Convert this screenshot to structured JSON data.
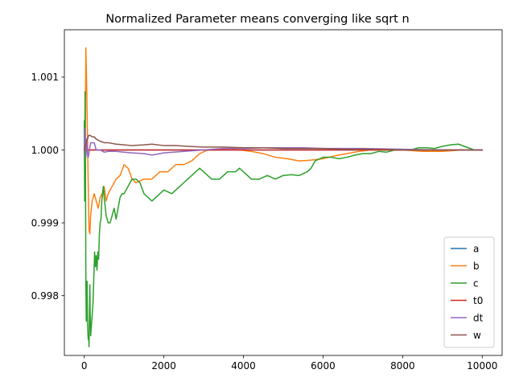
{
  "chart_data": {
    "type": "line",
    "title": "Normalized Parameter means converging like sqrt n",
    "xlabel": "",
    "ylabel": "",
    "xlim": [
      -500,
      10500
    ],
    "ylim": [
      0.99718,
      1.00165
    ],
    "x_ticks": [
      0,
      2000,
      4000,
      6000,
      8000,
      10000
    ],
    "x_tick_labels": [
      "0",
      "2000",
      "4000",
      "6000",
      "8000",
      "10000"
    ],
    "y_ticks": [
      0.998,
      0.999,
      1.0,
      1.001
    ],
    "y_tick_labels": [
      "0.998",
      "0.999",
      "1.000",
      "1.001"
    ],
    "grid": false,
    "legend_position": "lower-right",
    "series": [
      {
        "name": "a",
        "color": "#1f77b4",
        "x": [
          0,
          50,
          200,
          1000,
          3000,
          6000,
          10000
        ],
        "y": [
          1.0,
          1.0,
          1.0,
          1.0,
          1.0,
          1.0,
          1.0
        ]
      },
      {
        "name": "b",
        "color": "#ff7f0e",
        "x": [
          0,
          20,
          40,
          60,
          80,
          100,
          120,
          140,
          160,
          180,
          200,
          250,
          300,
          350,
          400,
          450,
          500,
          550,
          600,
          700,
          800,
          900,
          1000,
          1100,
          1200,
          1300,
          1500,
          1700,
          1900,
          2100,
          2300,
          2500,
          2700,
          2900,
          3100,
          3300,
          3600,
          3900,
          4200,
          4500,
          4800,
          5100,
          5400,
          5700,
          6000,
          6300,
          6600,
          6900,
          7200,
          7600,
          8000,
          8500,
          9000,
          9500,
          10000
        ],
        "y": [
          1.0,
          0.99985,
          1.0014,
          1.0009,
          1.0002,
          0.9995,
          0.9989,
          0.99885,
          0.9991,
          0.9992,
          0.9993,
          0.9994,
          0.9993,
          0.9992,
          0.99935,
          0.9994,
          0.9995,
          0.9993,
          0.9994,
          0.9995,
          0.9996,
          0.99965,
          0.9998,
          0.99975,
          0.9996,
          0.99955,
          0.9996,
          0.9996,
          0.9997,
          0.9997,
          0.9998,
          0.9998,
          0.99985,
          0.99995,
          1.0,
          1.0,
          1.00002,
          1.0,
          0.99998,
          0.99995,
          0.9999,
          0.99988,
          0.99985,
          0.99986,
          0.99988,
          0.99992,
          0.99995,
          0.99998,
          1.0,
          1.0,
          1.0,
          0.99998,
          0.99998,
          1.0,
          1.0
        ]
      },
      {
        "name": "c",
        "color": "#2ca02c",
        "x": [
          0,
          10,
          20,
          30,
          40,
          50,
          60,
          70,
          80,
          90,
          100,
          110,
          120,
          130,
          140,
          150,
          160,
          180,
          200,
          220,
          240,
          260,
          280,
          300,
          320,
          340,
          360,
          380,
          400,
          420,
          440,
          460,
          480,
          500,
          550,
          600,
          650,
          700,
          750,
          800,
          850,
          900,
          950,
          1000,
          1100,
          1200,
          1300,
          1400,
          1500,
          1600,
          1700,
          1800,
          1900,
          2000,
          2200,
          2400,
          2600,
          2800,
          2900,
          3000,
          3200,
          3400,
          3600,
          3800,
          3900,
          4000,
          4200,
          4400,
          4600,
          4800,
          5000,
          5200,
          5400,
          5600,
          5700,
          5800,
          6000,
          6200,
          6400,
          6600,
          6800,
          7000,
          7200,
          7400,
          7600,
          7800,
          8000,
          8200,
          8400,
          8600,
          8800,
          9000,
          9200,
          9400,
          9600,
          9800,
          10000
        ],
        "y": [
          1.0004,
          0.9993,
          1.0008,
          0.9998,
          0.9982,
          0.99765,
          0.99775,
          0.9982,
          0.9977,
          0.9975,
          0.9974,
          0.99745,
          0.9973,
          0.9978,
          0.99815,
          0.9977,
          0.99745,
          0.9976,
          0.99775,
          0.9979,
          0.99825,
          0.9986,
          0.9984,
          0.99855,
          0.99835,
          0.9986,
          0.9985,
          0.99885,
          0.999,
          0.99905,
          0.9993,
          0.9994,
          0.9995,
          0.99935,
          0.9991,
          0.999,
          0.999,
          0.9991,
          0.9992,
          0.99905,
          0.9992,
          0.99935,
          0.9994,
          0.9994,
          0.9995,
          0.9996,
          0.9996,
          0.99955,
          0.9994,
          0.99935,
          0.9993,
          0.99935,
          0.9994,
          0.99945,
          0.9994,
          0.9995,
          0.9996,
          0.9997,
          0.99975,
          0.9997,
          0.9996,
          0.9996,
          0.9997,
          0.9997,
          0.99975,
          0.9997,
          0.9996,
          0.9996,
          0.99965,
          0.9996,
          0.99965,
          0.99966,
          0.99965,
          0.9997,
          0.99975,
          0.99985,
          0.9999,
          0.9999,
          0.99988,
          0.9999,
          0.99993,
          0.99995,
          0.99995,
          0.99998,
          0.99997,
          1.0,
          1.0,
          1.0,
          1.00003,
          1.00003,
          1.00002,
          1.00005,
          1.00007,
          1.00008,
          1.00004,
          1.0,
          1.0
        ]
      },
      {
        "name": "t0",
        "color": "#d62728",
        "x": [
          0,
          100,
          500,
          1000,
          2000,
          4000,
          6000,
          8000,
          10000
        ],
        "y": [
          1.0,
          1.0,
          1.0,
          1.0,
          1.0,
          1.0,
          1.0,
          1.0,
          1.0
        ]
      },
      {
        "name": "dt",
        "color": "#9467bd",
        "x": [
          0,
          20,
          40,
          60,
          80,
          100,
          130,
          160,
          200,
          250,
          300,
          400,
          500,
          600,
          800,
          1000,
          1200,
          1500,
          1700,
          2000,
          2500,
          3000,
          3500,
          4000,
          4500,
          5000,
          5500,
          6000,
          7000,
          8000,
          9000,
          10000
        ],
        "y": [
          1.0,
          1.0003,
          0.9999,
          1.00015,
          0.99995,
          0.9999,
          1.0,
          1.0001,
          1.0001,
          1.0001,
          1.0,
          1.0,
          0.99997,
          0.99998,
          0.99998,
          0.99997,
          0.99996,
          0.99995,
          0.99993,
          0.99996,
          0.99998,
          1.0,
          1.00002,
          1.00002,
          1.00003,
          1.00003,
          1.00003,
          1.00002,
          1.00002,
          1.00001,
          1.0,
          1.0
        ]
      },
      {
        "name": "w",
        "color": "#8c564b",
        "x": [
          0,
          20,
          50,
          80,
          110,
          150,
          200,
          250,
          300,
          400,
          500,
          600,
          800,
          1000,
          1200,
          1500,
          1700,
          2000,
          2300,
          2600,
          3000,
          3500,
          4000,
          4500,
          5000,
          5500,
          6000,
          6500,
          7000,
          7500,
          8000,
          9000,
          10000
        ],
        "y": [
          1.0,
          1.00005,
          1.0001,
          1.00015,
          1.0002,
          1.0002,
          1.00018,
          1.00018,
          1.00015,
          1.00012,
          1.0001,
          1.0001,
          1.00008,
          1.00007,
          1.00006,
          1.00007,
          1.00008,
          1.00006,
          1.00006,
          1.00005,
          1.00004,
          1.00004,
          1.00003,
          1.00003,
          1.00002,
          1.00002,
          1.00002,
          1.00001,
          1.00001,
          1.00001,
          1.0,
          1.0,
          1.0
        ]
      }
    ]
  }
}
